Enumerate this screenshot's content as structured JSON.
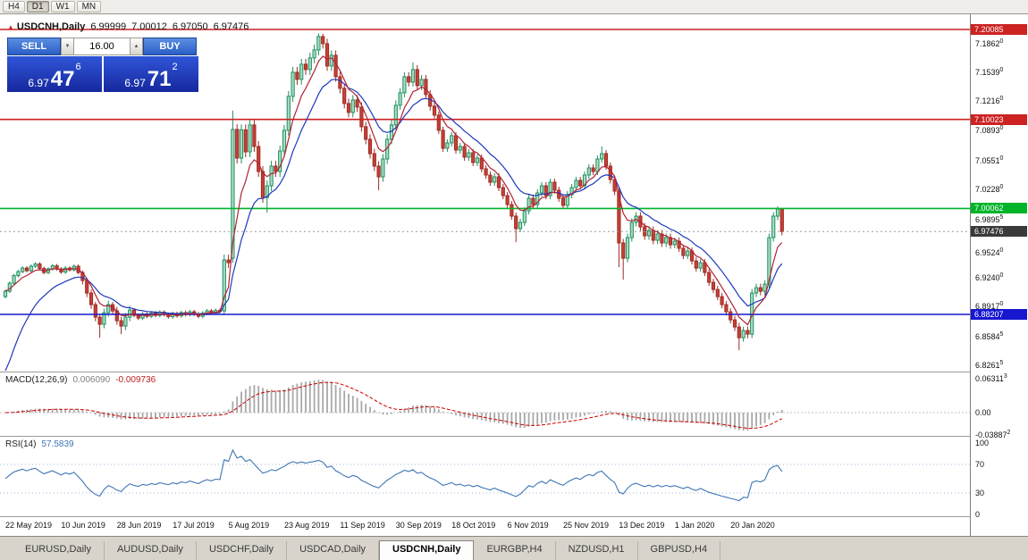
{
  "toolbar": {
    "timeframes": [
      {
        "label": "H4",
        "active": false
      },
      {
        "label": "D1",
        "active": true
      },
      {
        "label": "W1",
        "active": false
      },
      {
        "label": "MN",
        "active": false
      }
    ]
  },
  "icons": {
    "chevron_down": "▼",
    "chevron_up": "▲",
    "symbol_marker": "▲"
  },
  "chart": {
    "title": "USDCNH,Daily",
    "ohlc": {
      "open": "6.99999",
      "high": "7.00012",
      "low": "6.97050",
      "close": "6.97476"
    }
  },
  "trade_panel": {
    "sell_label": "SELL",
    "buy_label": "BUY",
    "lot": "16.00",
    "sell_price": {
      "big": "6.97",
      "mid": "47",
      "sup": "6"
    },
    "buy_price": {
      "big": "6.97",
      "mid": "71",
      "sup": "2"
    }
  },
  "levels": [
    {
      "value": 7.20085,
      "text": "7.20085",
      "color": "#cc2222"
    },
    {
      "value": 7.10023,
      "text": "7.10023",
      "color": "#cc2222"
    },
    {
      "value": 7.00062,
      "text": "7.00062",
      "color": "#00b42a"
    },
    {
      "value": 6.88207,
      "text": "6.88207",
      "color": "#1717cf"
    }
  ],
  "price_axis": {
    "ticks": [
      {
        "text": "7.1862",
        "sup": "0",
        "value": 7.1862
      },
      {
        "text": "7.1539",
        "sup": "0",
        "value": 7.1539
      },
      {
        "text": "7.1216",
        "sup": "0",
        "value": 7.1216
      },
      {
        "text": "7.0893",
        "sup": "0",
        "value": 7.0893
      },
      {
        "text": "7.0551",
        "sup": "0",
        "value": 7.0551
      },
      {
        "text": "7.0228",
        "sup": "0",
        "value": 7.0228
      },
      {
        "text": "6.9895",
        "sup": "5",
        "value": 6.98955
      },
      {
        "text": "6.9524",
        "sup": "0",
        "value": 6.9524
      },
      {
        "text": "6.9240",
        "sup": "0",
        "value": 6.924
      },
      {
        "text": "6.8917",
        "sup": "0",
        "value": 6.8917
      },
      {
        "text": "6.8584",
        "sup": "5",
        "value": 6.85845
      },
      {
        "text": "6.8261",
        "sup": "5",
        "value": 6.82615
      }
    ],
    "current": {
      "text": "6.97476",
      "value": 6.97476,
      "bg": "#3a3a3a"
    }
  },
  "indicators": {
    "macd": {
      "label": "MACD(12,26,9)",
      "main_value": "0.006090",
      "signal_value": "-0.009736",
      "axis_labels": [
        {
          "text": "0.06311",
          "sup": "3",
          "value": 0.063113
        },
        {
          "text": "0.00",
          "sup": "",
          "value": 0
        },
        {
          "text": "-0.03887",
          "sup": "2",
          "value": -0.038872
        }
      ]
    },
    "rsi": {
      "label": "RSI(14)",
      "value": "57.5839",
      "axis_labels": [
        {
          "text": "100",
          "value": 100
        },
        {
          "text": "70",
          "value": 70
        },
        {
          "text": "30",
          "value": 30
        },
        {
          "text": "0",
          "value": 0
        }
      ],
      "levels": [
        70,
        30
      ]
    }
  },
  "dates": [
    {
      "label": "22 May 2019",
      "index": 0
    },
    {
      "label": "10 Jun 2019",
      "index": 13
    },
    {
      "label": "28 Jun 2019",
      "index": 26
    },
    {
      "label": "17 Jul 2019",
      "index": 39
    },
    {
      "label": "5 Aug 2019",
      "index": 52
    },
    {
      "label": "23 Aug 2019",
      "index": 65
    },
    {
      "label": "11 Sep 2019",
      "index": 78
    },
    {
      "label": "30 Sep 2019",
      "index": 91
    },
    {
      "label": "18 Oct 2019",
      "index": 104
    },
    {
      "label": "6 Nov 2019",
      "index": 117
    },
    {
      "label": "25 Nov 2019",
      "index": 130
    },
    {
      "label": "13 Dec 2019",
      "index": 143
    },
    {
      "label": "1 Jan 2020",
      "index": 156
    },
    {
      "label": "20 Jan 2020",
      "index": 169
    }
  ],
  "tabs": [
    {
      "label": "EURUSD,Daily",
      "active": false
    },
    {
      "label": "AUDUSD,Daily",
      "active": false
    },
    {
      "label": "USDCHF,Daily",
      "active": false
    },
    {
      "label": "USDCAD,Daily",
      "active": false
    },
    {
      "label": "USDCNH,Daily",
      "active": true
    },
    {
      "label": "EURGBP,H4",
      "active": false
    },
    {
      "label": "NZDUSD,H1",
      "active": false
    },
    {
      "label": "GBPUSD,H4",
      "active": false
    }
  ],
  "chart_data": {
    "type": "candlestick",
    "symbol": "USDCNH",
    "timeframe": "Daily",
    "bull_color": "#1f8f5f",
    "bull_fill": "#aadcc3",
    "bear_color": "#9e2b24",
    "bear_fill": "#c74136",
    "ma_fast": {
      "period": 6,
      "color": "#b22234"
    },
    "ma_slow": {
      "period": 13,
      "color": "#1c39bb"
    },
    "macd_colors": {
      "histogram": "#a8a8a8",
      "signal": "#cc0000"
    },
    "rsi_color": "#3e76b5",
    "candles": [
      [
        6.902,
        6.91,
        6.9,
        6.908
      ],
      [
        6.908,
        6.919,
        6.906,
        6.917
      ],
      [
        6.917,
        6.9275,
        6.915,
        6.9255
      ],
      [
        6.9255,
        6.932,
        6.9235,
        6.93
      ],
      [
        6.93,
        6.936,
        6.928,
        6.934
      ],
      [
        6.934,
        6.936,
        6.929,
        6.931
      ],
      [
        6.931,
        6.938,
        6.929,
        6.936
      ],
      [
        6.936,
        6.9405,
        6.934,
        6.9385
      ],
      [
        6.9385,
        6.9405,
        6.9315,
        6.9335
      ],
      [
        6.9335,
        6.9355,
        6.927,
        6.929
      ],
      [
        6.929,
        6.935,
        6.927,
        6.933
      ],
      [
        6.933,
        6.9385,
        6.931,
        6.9365
      ],
      [
        6.9365,
        6.9385,
        6.931,
        6.933
      ],
      [
        6.933,
        6.935,
        6.9275,
        6.9295
      ],
      [
        6.9295,
        6.936,
        6.9275,
        6.934
      ],
      [
        6.934,
        6.936,
        6.93,
        6.932
      ],
      [
        6.932,
        6.938,
        6.93,
        6.936
      ],
      [
        6.936,
        6.938,
        6.927,
        6.929
      ],
      [
        6.929,
        6.931,
        6.9155,
        6.92
      ],
      [
        6.92,
        6.923,
        6.9015,
        6.906
      ],
      [
        6.906,
        6.91,
        6.8885,
        6.893
      ],
      [
        6.893,
        6.896,
        6.8745,
        6.879
      ],
      [
        6.879,
        6.882,
        6.856,
        6.871
      ],
      [
        6.871,
        6.8885,
        6.8665,
        6.884
      ],
      [
        6.884,
        6.8975,
        6.8795,
        6.893
      ],
      [
        6.893,
        6.896,
        6.8815,
        6.886
      ],
      [
        6.886,
        6.8905,
        6.8705,
        6.875
      ],
      [
        6.875,
        6.8795,
        6.86,
        6.869
      ],
      [
        6.869,
        6.8835,
        6.8645,
        6.879
      ],
      [
        6.879,
        6.8915,
        6.8745,
        6.887
      ],
      [
        6.887,
        6.889,
        6.8788,
        6.881
      ],
      [
        6.881,
        6.8832,
        6.8758,
        6.878
      ],
      [
        6.878,
        6.8847,
        6.8758,
        6.8825
      ],
      [
        6.8825,
        6.8847,
        6.8778,
        6.88
      ],
      [
        6.88,
        6.8857,
        6.8778,
        6.8835
      ],
      [
        6.8835,
        6.8857,
        6.8788,
        6.881
      ],
      [
        6.881,
        6.8867,
        6.8788,
        6.8845
      ],
      [
        6.8845,
        6.8867,
        6.8798,
        6.882
      ],
      [
        6.882,
        6.8842,
        6.8773,
        6.8795
      ],
      [
        6.8795,
        6.8852,
        6.8773,
        6.883
      ],
      [
        6.883,
        6.8852,
        6.8783,
        6.8805
      ],
      [
        6.8805,
        6.8862,
        6.8783,
        6.884
      ],
      [
        6.884,
        6.8862,
        6.8798,
        6.882
      ],
      [
        6.882,
        6.8872,
        6.8798,
        6.885
      ],
      [
        6.885,
        6.8872,
        6.8803,
        6.8825
      ],
      [
        6.8825,
        6.8847,
        6.8778,
        6.88
      ],
      [
        6.88,
        6.8857,
        6.8778,
        6.8835
      ],
      [
        6.8835,
        6.8882,
        6.8813,
        6.886
      ],
      [
        6.886,
        6.8882,
        6.8818,
        6.884
      ],
      [
        6.884,
        6.8887,
        6.8818,
        6.8865
      ],
      [
        6.8865,
        6.8887,
        6.8838,
        6.886
      ],
      [
        6.886,
        6.949,
        6.882,
        6.943
      ],
      [
        6.943,
        6.949,
        6.934,
        6.94
      ],
      [
        6.945,
        7.11,
        6.94,
        7.089
      ],
      [
        7.089,
        7.095,
        7.051,
        7.057
      ],
      [
        7.057,
        7.0945,
        7.051,
        7.0885
      ],
      [
        7.0885,
        7.0945,
        7.058,
        7.064
      ],
      [
        7.064,
        7.1,
        7.058,
        7.094
      ],
      [
        7.094,
        7.1,
        7.064,
        7.07
      ],
      [
        7.07,
        7.076,
        7.036,
        7.042
      ],
      [
        7.042,
        7.048,
        7.007,
        7.013
      ],
      [
        7.013,
        7.032,
        6.996,
        7.026
      ],
      [
        7.026,
        7.054,
        7.02,
        7.048
      ],
      [
        7.048,
        7.054,
        7.036,
        7.042
      ],
      [
        7.042,
        7.071,
        7.036,
        7.065
      ],
      [
        7.065,
        7.094,
        7.059,
        7.088
      ],
      [
        7.088,
        7.132,
        7.082,
        7.126
      ],
      [
        7.126,
        7.159,
        7.12,
        7.153
      ],
      [
        7.153,
        7.159,
        7.139,
        7.145
      ],
      [
        7.145,
        7.168,
        7.139,
        7.162
      ],
      [
        7.162,
        7.168,
        7.15,
        7.156
      ],
      [
        7.156,
        7.175,
        7.15,
        7.169
      ],
      [
        7.169,
        7.184,
        7.163,
        7.178
      ],
      [
        7.178,
        7.1965,
        7.172,
        7.193
      ],
      [
        7.193,
        7.196,
        7.1795,
        7.185
      ],
      [
        7.185,
        7.1905,
        7.1545,
        7.16
      ],
      [
        7.16,
        7.1775,
        7.1545,
        7.172
      ],
      [
        7.172,
        7.1775,
        7.1425,
        7.148
      ],
      [
        7.148,
        7.1535,
        7.1295,
        7.135
      ],
      [
        7.135,
        7.1405,
        7.1125,
        7.118
      ],
      [
        7.118,
        7.1235,
        7.1025,
        7.108
      ],
      [
        7.108,
        7.1275,
        7.1025,
        7.122
      ],
      [
        7.122,
        7.1275,
        7.1085,
        7.114
      ],
      [
        7.114,
        7.1195,
        7.0865,
        7.092
      ],
      [
        7.092,
        7.0975,
        7.0725,
        7.078
      ],
      [
        7.078,
        7.0835,
        7.0565,
        7.062
      ],
      [
        7.062,
        7.0675,
        7.0425,
        7.048
      ],
      [
        7.048,
        7.0535,
        7.021,
        7.036
      ],
      [
        7.036,
        7.0615,
        7.0305,
        7.056
      ],
      [
        7.056,
        7.0835,
        7.0505,
        7.078
      ],
      [
        7.078,
        7.0995,
        7.0725,
        7.094
      ],
      [
        7.094,
        7.1215,
        7.0885,
        7.116
      ],
      [
        7.116,
        7.135,
        7.111,
        7.13
      ],
      [
        7.13,
        7.153,
        7.125,
        7.148
      ],
      [
        7.148,
        7.153,
        7.137,
        7.142
      ],
      [
        7.142,
        7.164,
        7.137,
        7.156
      ],
      [
        7.156,
        7.161,
        7.133,
        7.138
      ],
      [
        7.138,
        7.15,
        7.133,
        7.145
      ],
      [
        7.145,
        7.15,
        7.123,
        7.128
      ],
      [
        7.128,
        7.133,
        7.11,
        7.115
      ],
      [
        7.115,
        7.119,
        7.101,
        7.105
      ],
      [
        7.105,
        7.109,
        7.084,
        7.088
      ],
      [
        7.088,
        7.092,
        7.064,
        7.068
      ],
      [
        7.068,
        7.078,
        7.064,
        7.074
      ],
      [
        7.074,
        7.086,
        7.07,
        7.082
      ],
      [
        7.082,
        7.086,
        7.062,
        7.066
      ],
      [
        7.066,
        7.074,
        7.062,
        7.07
      ],
      [
        7.07,
        7.074,
        7.054,
        7.058
      ],
      [
        7.058,
        7.067,
        7.054,
        7.063
      ],
      [
        7.063,
        7.067,
        7.048,
        7.052
      ],
      [
        7.052,
        7.061,
        7.048,
        7.057
      ],
      [
        7.057,
        7.061,
        7.041,
        7.045
      ],
      [
        7.045,
        7.049,
        7.034,
        7.038
      ],
      [
        7.038,
        7.042,
        7.026,
        7.03
      ],
      [
        7.03,
        7.04,
        7.026,
        7.036
      ],
      [
        7.036,
        7.04,
        7.02,
        7.024
      ],
      [
        7.024,
        7.028,
        7.011,
        7.015
      ],
      [
        7.015,
        7.019,
        7.001,
        7.005
      ],
      [
        7.005,
        7.009,
        6.988,
        6.992
      ],
      [
        6.992,
        6.996,
        6.963,
        6.978
      ],
      [
        6.978,
        6.989,
        6.974,
        6.985
      ],
      [
        6.985,
        7.002,
        6.981,
        6.998
      ],
      [
        6.998,
        7.016,
        6.994,
        7.012
      ],
      [
        7.012,
        7.016,
        7.001,
        7.005
      ],
      [
        7.005,
        7.022,
        7.001,
        7.018
      ],
      [
        7.018,
        7.03,
        7.014,
        7.026
      ],
      [
        7.026,
        7.03,
        7.011,
        7.015
      ],
      [
        7.015,
        7.034,
        7.011,
        7.03
      ],
      [
        7.03,
        7.034,
        7.017,
        7.021
      ],
      [
        7.021,
        7.025,
        7.008,
        7.012
      ],
      [
        7.012,
        7.016,
        7.0,
        7.004
      ],
      [
        7.004,
        7.02,
        7.0,
        7.016
      ],
      [
        7.016,
        7.028,
        7.012,
        7.024
      ],
      [
        7.024,
        7.036,
        7.02,
        7.032
      ],
      [
        7.032,
        7.036,
        7.022,
        7.026
      ],
      [
        7.026,
        7.042,
        7.022,
        7.038
      ],
      [
        7.038,
        7.05,
        7.034,
        7.046
      ],
      [
        7.046,
        7.05,
        7.038,
        7.042
      ],
      [
        7.042,
        7.06,
        7.038,
        7.056
      ],
      [
        7.056,
        7.07,
        7.052,
        7.062
      ],
      [
        7.062,
        7.066,
        7.044,
        7.048
      ],
      [
        7.048,
        7.052,
        7.0285,
        7.033
      ],
      [
        7.033,
        7.0375,
        7.0155,
        7.02
      ],
      [
        7.02,
        7.024,
        6.935,
        6.962
      ],
      [
        6.962,
        6.9665,
        6.921,
        6.945
      ],
      [
        6.945,
        6.9725,
        6.9405,
        6.968
      ],
      [
        6.968,
        6.9895,
        6.9635,
        6.985
      ],
      [
        6.985,
        6.9965,
        6.9805,
        6.992
      ],
      [
        6.992,
        6.9965,
        6.9755,
        6.98
      ],
      [
        6.98,
        6.9845,
        6.9655,
        6.97
      ],
      [
        6.97,
        6.9805,
        6.9655,
        6.976
      ],
      [
        6.976,
        6.9805,
        6.9605,
        6.965
      ],
      [
        6.965,
        6.9765,
        6.9605,
        6.972
      ],
      [
        6.972,
        6.9765,
        6.9575,
        6.962
      ],
      [
        6.962,
        6.9725,
        6.9575,
        6.968
      ],
      [
        6.968,
        6.9725,
        6.9555,
        6.96
      ],
      [
        6.96,
        6.968,
        6.956,
        6.964
      ],
      [
        6.964,
        6.968,
        6.952,
        6.956
      ],
      [
        6.956,
        6.96,
        6.944,
        6.948
      ],
      [
        6.948,
        6.957,
        6.944,
        6.953
      ],
      [
        6.953,
        6.957,
        6.938,
        6.942
      ],
      [
        6.942,
        6.946,
        6.93,
        6.934
      ],
      [
        6.934,
        6.944,
        6.93,
        6.94
      ],
      [
        6.94,
        6.944,
        6.925,
        6.929
      ],
      [
        6.929,
        6.933,
        6.914,
        6.918
      ],
      [
        6.918,
        6.922,
        6.906,
        6.91
      ],
      [
        6.91,
        6.914,
        6.898,
        6.902
      ],
      [
        6.902,
        6.906,
        6.889,
        6.893
      ],
      [
        6.893,
        6.897,
        6.881,
        6.885
      ],
      [
        6.885,
        6.889,
        6.872,
        6.876
      ],
      [
        6.876,
        6.8805,
        6.8635,
        6.868
      ],
      [
        6.868,
        6.8725,
        6.842,
        6.856
      ],
      [
        6.856,
        6.8685,
        6.8515,
        6.864
      ],
      [
        6.864,
        6.8685,
        6.8555,
        6.86
      ],
      [
        6.86,
        6.9105,
        6.8555,
        6.906
      ],
      [
        6.906,
        6.9165,
        6.9015,
        6.912
      ],
      [
        6.912,
        6.9165,
        6.9035,
        6.908
      ],
      [
        6.908,
        6.9205,
        6.9035,
        6.916
      ],
      [
        6.916,
        6.9725,
        6.9115,
        6.968
      ],
      [
        6.968,
        6.9965,
        6.9635,
        6.992
      ],
      [
        6.992,
        7.003,
        6.9875,
        7.0
      ],
      [
        7.0,
        7.0001,
        6.9705,
        6.9748
      ]
    ]
  }
}
